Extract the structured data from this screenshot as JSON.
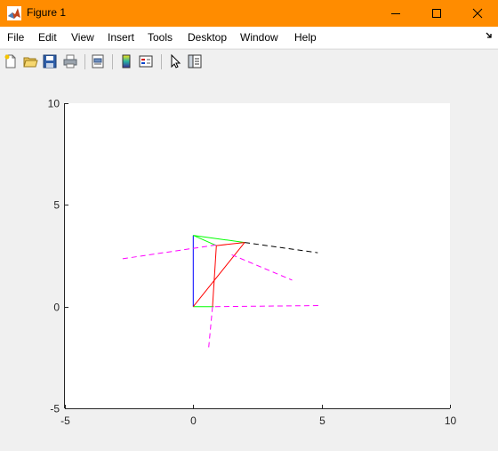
{
  "window": {
    "title": "Figure 1"
  },
  "menu": {
    "items": [
      "File",
      "Edit",
      "View",
      "Insert",
      "Tools",
      "Desktop",
      "Window",
      "Help"
    ],
    "overflow_icon": "dock-arrow-icon"
  },
  "toolbar": {
    "tools": [
      "new-figure-icon",
      "open-file-icon",
      "save-icon",
      "print-icon",
      "print-preview-icon",
      "colorbar-icon",
      "legend-icon",
      "pointer-icon",
      "property-inspector-icon"
    ]
  },
  "colors": {
    "titlebar": "#ff8c00",
    "blue": "#0000ff",
    "green": "#00ff00",
    "red": "#ff0000",
    "black": "#000000",
    "magenta": "#ff00ff"
  },
  "chart_data": {
    "type": "line",
    "title": "",
    "xlabel": "",
    "ylabel": "",
    "xlim": [
      -5,
      10
    ],
    "ylim": [
      -5,
      10
    ],
    "xticks": [
      "-5",
      "0",
      "5",
      "10"
    ],
    "yticks": [
      "-5",
      "0",
      "5",
      "10"
    ],
    "grid": false,
    "series": [
      {
        "color": "#0000ff",
        "style": "solid",
        "x": [
          0,
          0
        ],
        "y": [
          0,
          3.5
        ]
      },
      {
        "color": "#00ff00",
        "style": "solid",
        "x": [
          0,
          0.8
        ],
        "y": [
          0,
          0
        ]
      },
      {
        "color": "#00ff00",
        "style": "solid",
        "x": [
          0,
          2
        ],
        "y": [
          3.5,
          3.15
        ]
      },
      {
        "color": "#00ff00",
        "style": "solid",
        "x": [
          0,
          0.9
        ],
        "y": [
          3.5,
          3.0
        ]
      },
      {
        "color": "#ff0000",
        "style": "solid",
        "x": [
          0,
          2
        ],
        "y": [
          0,
          3.15
        ]
      },
      {
        "color": "#ff0000",
        "style": "solid",
        "x": [
          0.9,
          2
        ],
        "y": [
          3.0,
          3.15
        ]
      },
      {
        "color": "#ff0000",
        "style": "solid",
        "x": [
          0.9,
          0.75
        ],
        "y": [
          3.0,
          0
        ]
      },
      {
        "color": "#000000",
        "style": "dashed",
        "x": [
          2,
          4.85
        ],
        "y": [
          3.15,
          2.65
        ]
      },
      {
        "color": "#ff00ff",
        "style": "dashed",
        "x": [
          -2.75,
          1
        ],
        "y": [
          2.35,
          3.05
        ]
      },
      {
        "color": "#ff00ff",
        "style": "dashed",
        "x": [
          1.5,
          3.85
        ],
        "y": [
          2.55,
          1.3
        ]
      },
      {
        "color": "#ff00ff",
        "style": "dashed",
        "x": [
          0.85,
          5
        ],
        "y": [
          0,
          0.05
        ]
      },
      {
        "color": "#ff00ff",
        "style": "dashed",
        "x": [
          0.75,
          0.6
        ],
        "y": [
          0,
          -2
        ]
      }
    ]
  }
}
